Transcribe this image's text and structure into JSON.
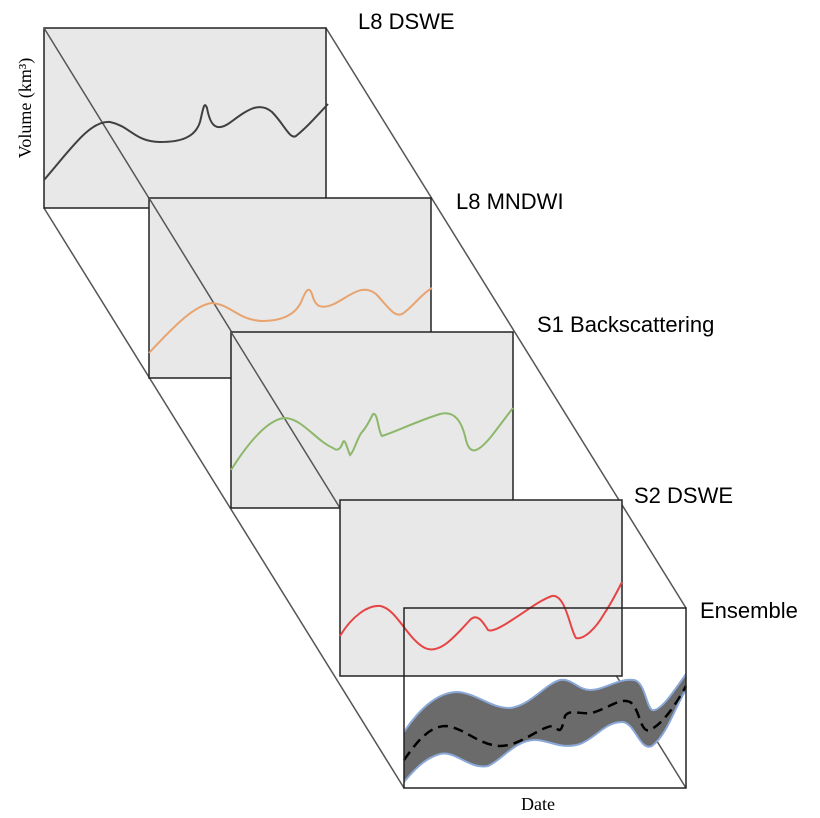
{
  "diagram": {
    "axes": {
      "y_label": "Volume (km³)",
      "x_label": "Date"
    },
    "panels": [
      {
        "id": "l8-dswe",
        "label": "L8 DSWE",
        "fill": "#e8e8e8",
        "line_color": "#404040"
      },
      {
        "id": "l8-mndwi",
        "label": "L8 MNDWI",
        "fill": "#e8e8e8",
        "line_color": "#e8a36e"
      },
      {
        "id": "s1-backscattering",
        "label": "S1 Backscattering",
        "fill": "#e8e8e8",
        "line_color": "#8db76a"
      },
      {
        "id": "s2-dswe",
        "label": "S2 DSWE",
        "fill": "#e8e8e8",
        "line_color": "#e64545"
      },
      {
        "id": "ensemble",
        "label": "Ensemble",
        "fill": "#ffffff",
        "band_color": "#6b6b6b",
        "band_edge_color": "#8aa8d8",
        "line_color": "#000000"
      }
    ]
  }
}
